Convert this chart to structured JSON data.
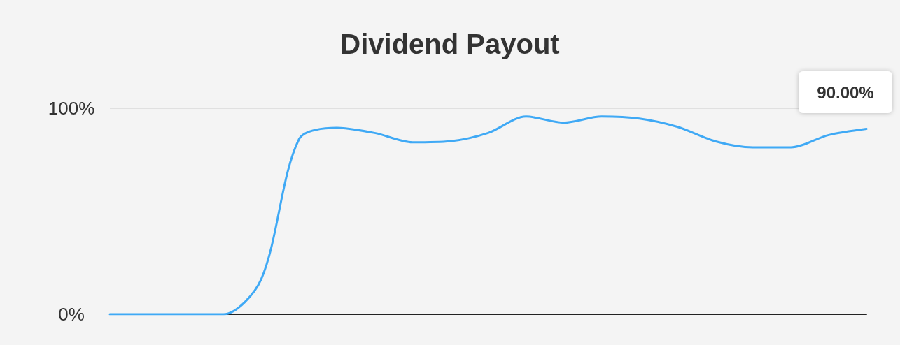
{
  "chart_data": {
    "type": "line",
    "title": "Dividend Payout",
    "categories": [
      null,
      null,
      null,
      null,
      null,
      null,
      null,
      null,
      null,
      null,
      null,
      null,
      null,
      null,
      null,
      null,
      null,
      null,
      null,
      null,
      null
    ],
    "series": [
      {
        "color": "#3fa9f5",
        "values": [
          0,
          0,
          0,
          0,
          17,
          85,
          90.5,
          88,
          83.5,
          84,
          88,
          96,
          93,
          96,
          95,
          91,
          84,
          81,
          81,
          87,
          90
        ]
      }
    ],
    "ylim": [
      0,
      100
    ],
    "yticks": [
      {
        "value": 0,
        "label": "0%"
      },
      {
        "value": 100,
        "label": "100%"
      }
    ],
    "grid": "y",
    "marker": "none",
    "line_style": "solid",
    "annotations": [
      {
        "text": "90.00%",
        "y": 90
      }
    ]
  }
}
